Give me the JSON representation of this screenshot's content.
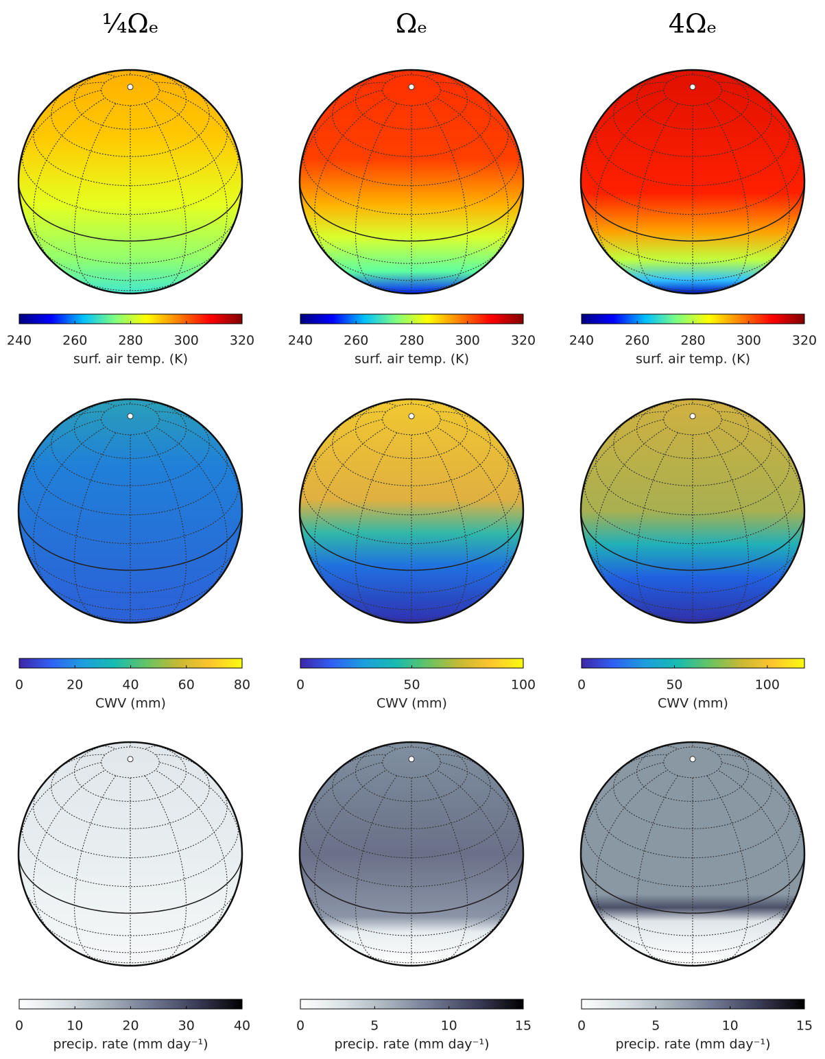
{
  "columns": [
    {
      "title": "¼Ωₑ"
    },
    {
      "title": "Ωₑ"
    },
    {
      "title": "4Ωₑ"
    }
  ],
  "rows": [
    {
      "colors": [
        "#00007f",
        "#0000ff",
        "#00bfff",
        "#7fff7f",
        "#ffff00",
        "#ff7f00",
        "#ff0000",
        "#7f0000"
      ],
      "colorbars": [
        {
          "label": "surf. air temp. (K)",
          "lim": [
            240,
            320
          ],
          "ticks": [
            240,
            260,
            280,
            300,
            320
          ]
        },
        {
          "label": "surf. air temp. (K)",
          "lim": [
            240,
            320
          ],
          "ticks": [
            240,
            260,
            280,
            300,
            320
          ]
        },
        {
          "label": "surf. air temp. (K)",
          "lim": [
            240,
            320
          ],
          "ticks": [
            240,
            260,
            280,
            300,
            320
          ]
        }
      ]
    },
    {
      "colors": [
        "#3e26a8",
        "#2f61f5",
        "#1c9fdd",
        "#17bbb0",
        "#65c463",
        "#c7b933",
        "#fec52e",
        "#f9fb0e"
      ],
      "colorbars": [
        {
          "label": "CWV (mm)",
          "lim": [
            0,
            80
          ],
          "ticks": [
            0,
            20,
            40,
            60,
            80
          ]
        },
        {
          "label": "CWV (mm)",
          "lim": [
            0,
            100
          ],
          "ticks": [
            0,
            50,
            100
          ]
        },
        {
          "label": "CWV (mm)",
          "lim": [
            0,
            120
          ],
          "ticks": [
            0,
            50,
            100
          ]
        }
      ]
    },
    {
      "colors": [
        "#ffffff",
        "#d8e0e3",
        "#a6b0bb",
        "#707690",
        "#3a3b55",
        "#000000"
      ],
      "colorbars": [
        {
          "label": "precip. rate (mm day⁻¹)",
          "lim": [
            0,
            40
          ],
          "ticks": [
            0,
            10,
            20,
            30,
            40
          ]
        },
        {
          "label": "precip. rate (mm day⁻¹)",
          "lim": [
            0,
            15
          ],
          "ticks": [
            0,
            5,
            10,
            15
          ]
        },
        {
          "label": "precip. rate (mm day⁻¹)",
          "lim": [
            0,
            15
          ],
          "ticks": [
            0,
            5,
            10,
            15
          ]
        }
      ]
    }
  ]
}
